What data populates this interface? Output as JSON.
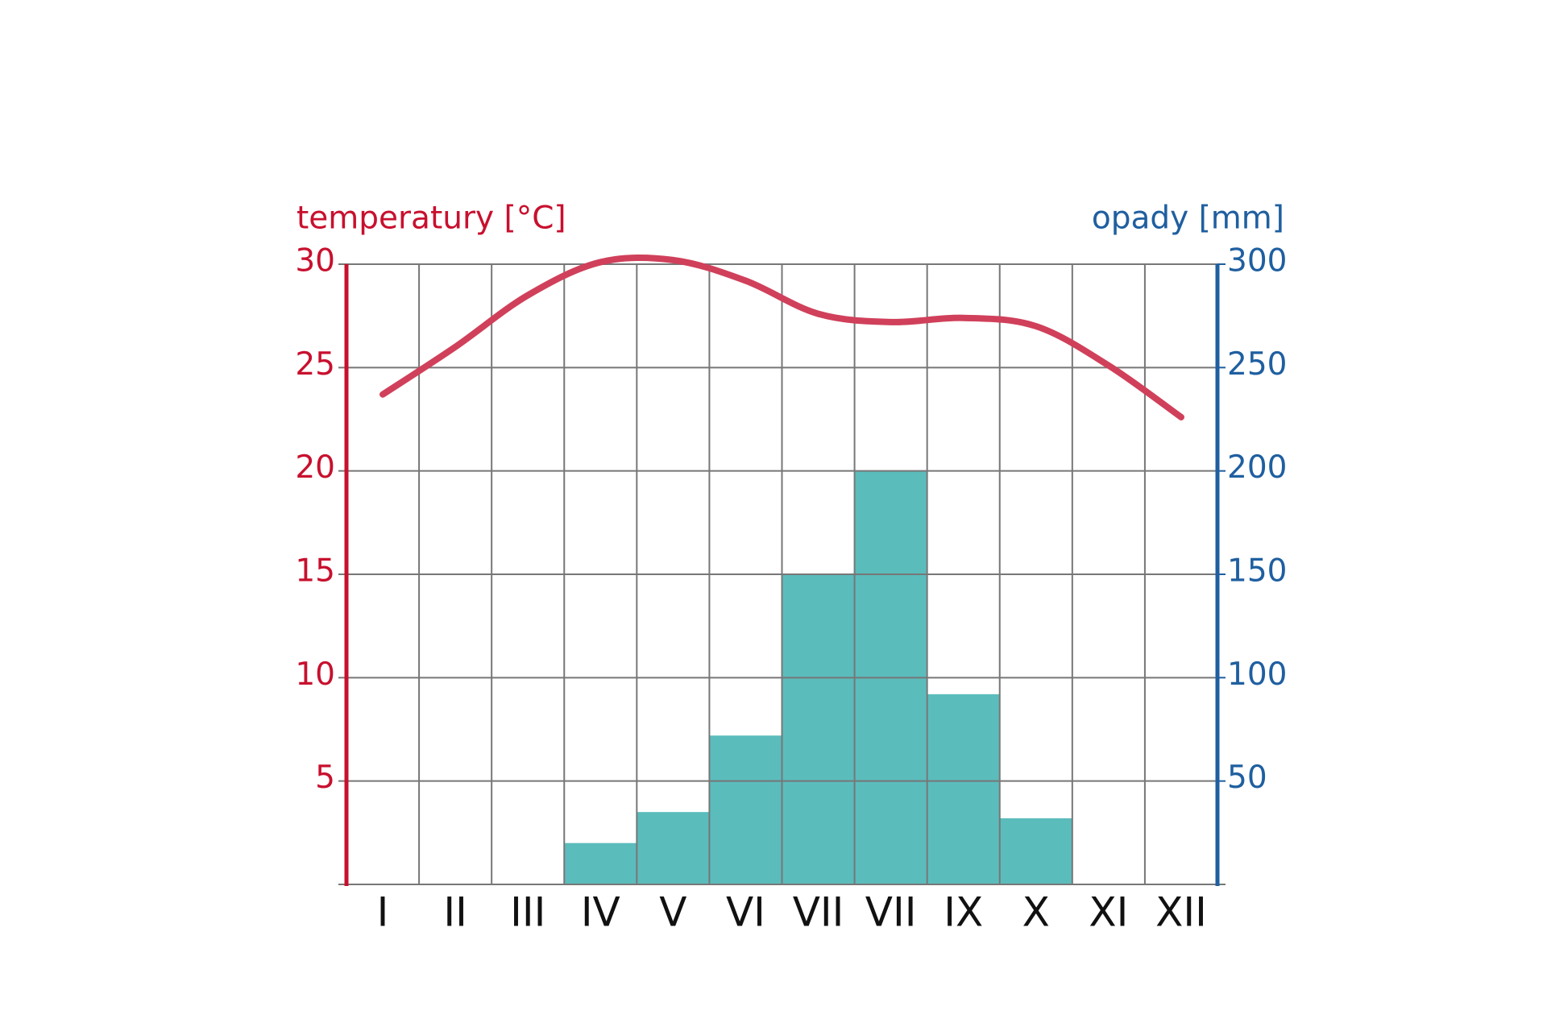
{
  "chart_data": {
    "type": "bar",
    "y_label": "temperatury [°C]",
    "y2_label": "opady [mm]",
    "categories": [
      "I",
      "II",
      "III",
      "IV",
      "V",
      "VI",
      "VII",
      "VII",
      "IX",
      "X",
      "XI",
      "XII"
    ],
    "series": [
      {
        "type": "line",
        "color": "#d0405a",
        "values": [
          23.7,
          26.0,
          28.5,
          30.1,
          30.2,
          29.2,
          27.6,
          27.2,
          27.4,
          27.0,
          25.1,
          22.6
        ]
      },
      {
        "type": "bar",
        "axis": "y2",
        "color": "#5bbcbc",
        "values": [
          0,
          0,
          0,
          20,
          35,
          72,
          150,
          200,
          92,
          32,
          0,
          0
        ]
      }
    ],
    "ylim": [
      0,
      30
    ],
    "yticks": [
      5,
      10,
      15,
      20,
      25,
      30
    ],
    "y2lim": [
      0,
      300
    ],
    "y2ticks": [
      50,
      100,
      150,
      200,
      250,
      300
    ],
    "y_color": "#c8102e",
    "y2_color": "#1f5fa0",
    "grid": true
  }
}
